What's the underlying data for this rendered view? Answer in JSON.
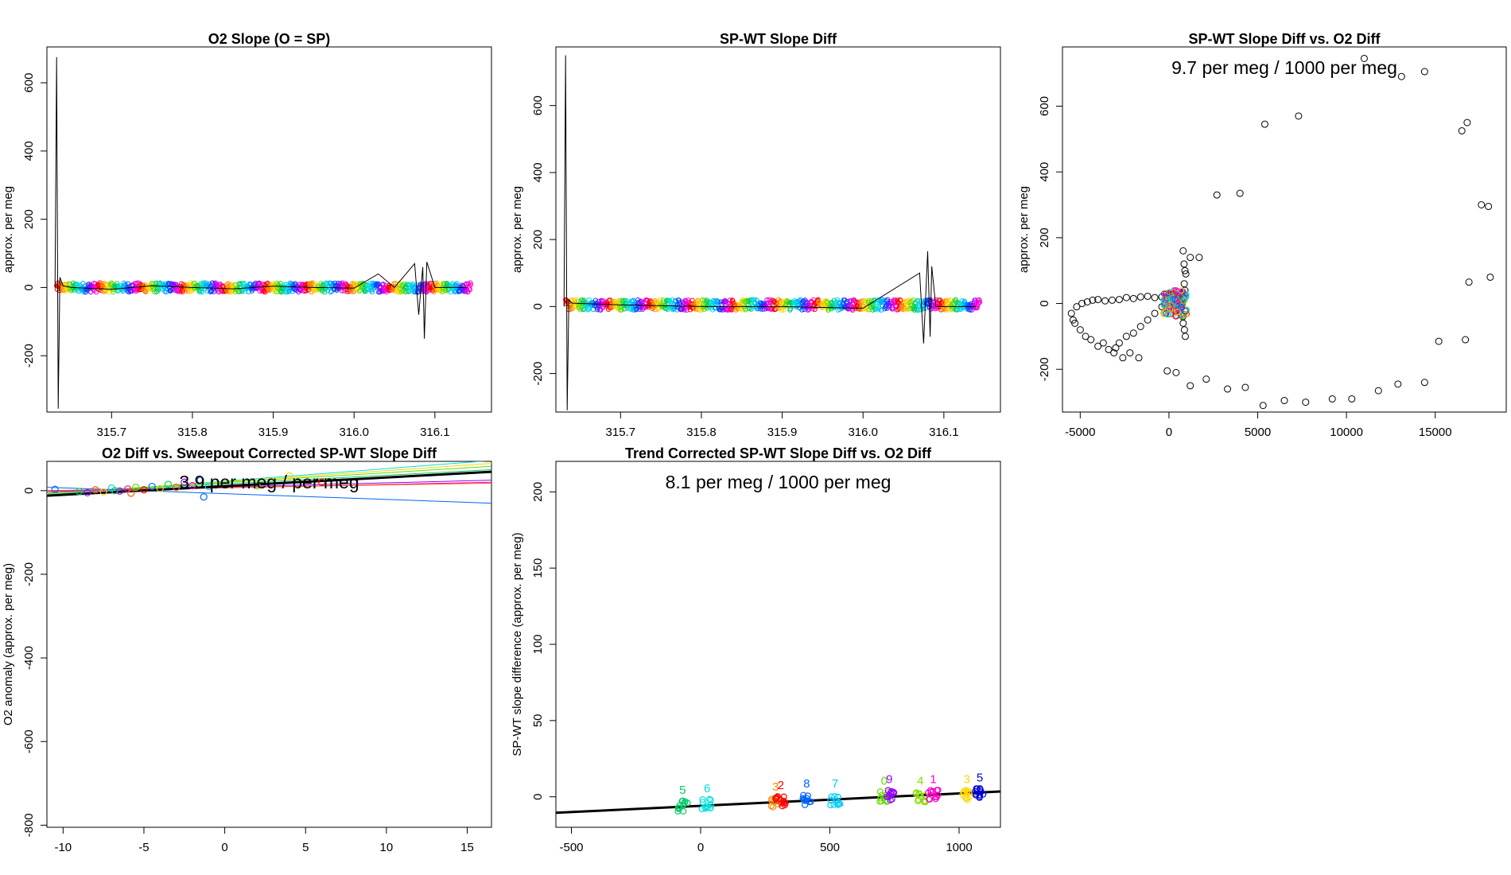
{
  "chart_data": [
    {
      "id": "p1",
      "type": "line",
      "title": "O2 Slope (O = SP)",
      "xlabel": "",
      "ylabel": "approx. per meg",
      "xlim": [
        315.62,
        316.17
      ],
      "ylim": [
        -365,
        705
      ],
      "xticks": [
        315.7,
        315.8,
        315.9,
        316.0,
        316.1
      ],
      "xtick_labels": [
        "315.7",
        "315.8",
        "315.9",
        "316.0",
        "316.1"
      ],
      "yticks": [
        -200,
        0,
        200,
        400,
        600
      ],
      "ytick_labels": [
        "-200",
        "0",
        "200",
        "400",
        "600"
      ],
      "series": [
        {
          "name": "trace",
          "color": "#000000",
          "x": [
            315.63,
            315.632,
            315.634,
            315.636,
            315.64,
            315.65,
            315.7,
            315.75,
            315.8,
            315.85,
            315.9,
            315.95,
            316.0,
            316.03,
            316.05,
            316.075,
            316.08,
            316.085,
            316.087,
            316.09,
            316.1,
            316.14
          ],
          "y": [
            0,
            675,
            -355,
            30,
            5,
            0,
            -5,
            5,
            0,
            -4,
            4,
            0,
            -2,
            40,
            0,
            70,
            -80,
            60,
            -150,
            75,
            0,
            0
          ]
        }
      ],
      "band": {
        "x_range": [
          315.632,
          316.145
        ],
        "y_center": 0,
        "spread": 14
      },
      "annotation": ""
    },
    {
      "id": "p2",
      "type": "line",
      "title": "SP-WT Slope Diff",
      "xlabel": "",
      "ylabel": "approx. per meg",
      "xlim": [
        315.62,
        316.17
      ],
      "ylim": [
        -315,
        775
      ],
      "xticks": [
        315.7,
        315.8,
        315.9,
        316.0,
        316.1
      ],
      "xtick_labels": [
        "315.7",
        "315.8",
        "315.9",
        "316.0",
        "316.1"
      ],
      "yticks": [
        -200,
        0,
        200,
        400,
        600
      ],
      "ytick_labels": [
        "-200",
        "0",
        "200",
        "400",
        "600"
      ],
      "series": [
        {
          "name": "trace",
          "color": "#000000",
          "x": [
            315.63,
            315.632,
            315.634,
            315.636,
            315.64,
            315.7,
            315.8,
            315.9,
            316.0,
            316.07,
            316.075,
            316.08,
            316.083,
            316.085,
            316.09,
            316.1,
            316.14
          ],
          "y": [
            0,
            750,
            -310,
            20,
            10,
            5,
            0,
            0,
            -5,
            100,
            -110,
            165,
            -90,
            120,
            0,
            0,
            0
          ]
        }
      ],
      "band": {
        "x_range": [
          315.632,
          316.145
        ],
        "y_center": 5,
        "spread": 16
      },
      "annotation": ""
    },
    {
      "id": "p3",
      "type": "scatter",
      "title": "SP-WT Slope Diff vs. O2 Diff",
      "xlabel": "",
      "ylabel": "approx. per meg",
      "xlim": [
        -6000,
        19000
      ],
      "ylim": [
        -330,
        780
      ],
      "xticks": [
        -5000,
        0,
        5000,
        10000,
        15000
      ],
      "xtick_labels": [
        "-5000",
        "0",
        "5000",
        "10000",
        "15000"
      ],
      "yticks": [
        -200,
        0,
        200,
        400,
        600
      ],
      "ytick_labels": [
        "-200",
        "0",
        "200",
        "400",
        "600"
      ],
      "points_x": [
        -5500,
        -5400,
        -5200,
        -4900,
        -4600,
        -4300,
        -4000,
        -3600,
        -3200,
        -2800,
        -2400,
        -2000,
        -1600,
        -1200,
        -800,
        -400,
        0,
        400,
        700,
        900,
        -5300,
        -5000,
        -4700,
        -4400,
        -4000,
        -3700,
        -3400,
        -3100,
        -2800,
        -2400,
        -2000,
        -1600,
        -1200,
        -800,
        -400,
        1200,
        1700,
        2700,
        4000,
        5400,
        7300,
        11000,
        13100,
        14400,
        16500,
        16800,
        17600,
        18000,
        18100,
        16900,
        16700,
        15200,
        14400,
        12900,
        11800,
        10300,
        9200,
        7700,
        6500,
        5300,
        4300,
        3300,
        2100,
        1200,
        400,
        -100,
        -1700,
        -2200,
        -2600,
        -3000,
        800,
        850,
        900,
        950,
        800,
        870,
        920,
        860,
        780
      ],
      "points_y": [
        -30,
        -50,
        -10,
        0,
        5,
        10,
        12,
        8,
        10,
        12,
        18,
        15,
        20,
        22,
        18,
        20,
        25,
        22,
        30,
        40,
        -60,
        -80,
        -100,
        -110,
        -130,
        -120,
        -140,
        -150,
        -120,
        -100,
        -90,
        -70,
        -50,
        -30,
        -10,
        140,
        140,
        330,
        335,
        545,
        570,
        745,
        690,
        705,
        525,
        550,
        300,
        295,
        80,
        65,
        -110,
        -115,
        -240,
        -245,
        -265,
        -290,
        -290,
        -300,
        -295,
        -310,
        -255,
        -260,
        -230,
        -250,
        -210,
        -205,
        -165,
        -150,
        -165,
        -135,
        160,
        120,
        100,
        90,
        -60,
        -80,
        -100,
        60,
        -40
      ],
      "annotation": "9.7 per meg / 1000 per meg",
      "cluster": {
        "x_range": [
          -300,
          1000
        ],
        "y_range": [
          -40,
          40
        ]
      }
    },
    {
      "id": "p4",
      "type": "scatter",
      "title": "O2 Diff vs. Sweepout Corrected SP-WT Slope Diff",
      "xlabel": "",
      "ylabel": "O2 anomaly (approx. per meg)",
      "xlim": [
        -11,
        16.5
      ],
      "ylim": [
        -805,
        70
      ],
      "xticks": [
        -10,
        -5,
        0,
        5,
        10,
        15
      ],
      "xtick_labels": [
        "-10",
        "-5",
        "0",
        "5",
        "10",
        "15"
      ],
      "yticks": [
        -800,
        -600,
        -400,
        -200,
        0
      ],
      "ytick_labels": [
        "-800",
        "-600",
        "-400",
        "-200",
        "0"
      ],
      "fit_lines": [
        {
          "color": "#00e0e0",
          "x": [
            -11,
            16.5
          ],
          "y": [
            -10,
            72
          ]
        },
        {
          "color": "#ffd700",
          "x": [
            -11,
            16.5
          ],
          "y": [
            -8,
            65
          ]
        },
        {
          "color": "#66dd00",
          "x": [
            -11,
            16.5
          ],
          "y": [
            -6,
            58
          ]
        },
        {
          "color": "#00cc66",
          "x": [
            -11,
            16.5
          ],
          "y": [
            -6,
            50
          ]
        },
        {
          "color": "#9900ff",
          "x": [
            -11,
            16.5
          ],
          "y": [
            -2,
            25
          ]
        },
        {
          "color": "#ff00cc",
          "x": [
            -11,
            16.5
          ],
          "y": [
            -2,
            20
          ]
        },
        {
          "color": "#ff5500",
          "x": [
            -11,
            16.5
          ],
          "y": [
            0,
            18
          ]
        },
        {
          "color": "#0066ff",
          "x": [
            -11,
            16.5
          ],
          "y": [
            8,
            -30
          ]
        },
        {
          "color": "#000000",
          "x": [
            -11,
            16.5
          ],
          "y": [
            -12,
            45
          ],
          "width": 3
        }
      ],
      "points": [
        {
          "x": -10.5,
          "y": 3,
          "color": "#0066ff"
        },
        {
          "x": -9.0,
          "y": -2,
          "color": "#00cc66"
        },
        {
          "x": -8.0,
          "y": 2,
          "color": "#ff5500"
        },
        {
          "x": -7.5,
          "y": -3,
          "color": "#ffd700"
        },
        {
          "x": -7.0,
          "y": 6,
          "color": "#00e0e0"
        },
        {
          "x": -6.5,
          "y": -1,
          "color": "#9900ff"
        },
        {
          "x": -6.0,
          "y": 4,
          "color": "#ff00cc"
        },
        {
          "x": -5.5,
          "y": 8,
          "color": "#66dd00"
        },
        {
          "x": -5.0,
          "y": 2,
          "color": "#ff0000"
        },
        {
          "x": -4.5,
          "y": 10,
          "color": "#0066ff"
        },
        {
          "x": -4.0,
          "y": 5,
          "color": "#ffd700"
        },
        {
          "x": -3.5,
          "y": 15,
          "color": "#00cc66"
        },
        {
          "x": -3.0,
          "y": 8,
          "color": "#ff5500"
        },
        {
          "x": -2.5,
          "y": 20,
          "color": "#9900ff"
        },
        {
          "x": -2.0,
          "y": 12,
          "color": "#ff00cc"
        },
        {
          "x": -1.5,
          "y": 25,
          "color": "#0066ff"
        },
        {
          "x": -1.3,
          "y": -15,
          "color": "#0066ff"
        },
        {
          "x": -1.0,
          "y": 10,
          "color": "#00e0e0"
        },
        {
          "x": 2.0,
          "y": 12,
          "color": "#66dd00"
        },
        {
          "x": 4.0,
          "y": 35,
          "color": "#ffd700"
        },
        {
          "x": 6.0,
          "y": 20,
          "color": "#ff0000"
        },
        {
          "x": -8.5,
          "y": -5,
          "color": "#9900ff"
        },
        {
          "x": -6.8,
          "y": 0,
          "color": "#00cc66"
        },
        {
          "x": -5.8,
          "y": -6,
          "color": "#ff5500"
        }
      ],
      "annotation": "3.9 per meg / per meg"
    },
    {
      "id": "p5",
      "type": "scatter",
      "title": "Trend Corrected SP-WT Slope Diff vs. O2 Diff",
      "xlabel": "",
      "ylabel": "SP-WT slope difference (approx. per meg)",
      "xlim": [
        -560,
        1160
      ],
      "ylim": [
        -20,
        220
      ],
      "xticks": [
        -500,
        0,
        500,
        1000
      ],
      "xtick_labels": [
        "-500",
        "0",
        "500",
        "1000"
      ],
      "yticks": [
        0,
        50,
        100,
        150,
        200
      ],
      "ytick_labels": [
        "0",
        "50",
        "100",
        "150",
        "200"
      ],
      "fit_lines": [
        {
          "color": "#000000",
          "x": [
            -560,
            1160
          ],
          "y": [
            -10.5,
            3.5
          ],
          "width": 3
        }
      ],
      "clusters": [
        {
          "x": -70,
          "y": -6,
          "color": "#00cc66",
          "label": "5"
        },
        {
          "x": 25,
          "y": -5,
          "color": "#00e0e0",
          "label": "6"
        },
        {
          "x": 290,
          "y": -4,
          "color": "#ff8800",
          "label": "3"
        },
        {
          "x": 310,
          "y": -3,
          "color": "#ff0000",
          "label": "2"
        },
        {
          "x": 410,
          "y": -2,
          "color": "#0066ff",
          "label": "8"
        },
        {
          "x": 520,
          "y": -2,
          "color": "#00ccff",
          "label": "7"
        },
        {
          "x": 710,
          "y": 0,
          "color": "#66dd00",
          "label": "0"
        },
        {
          "x": 730,
          "y": 1,
          "color": "#9900ff",
          "label": "9"
        },
        {
          "x": 850,
          "y": 0,
          "color": "#88dd00",
          "label": "4"
        },
        {
          "x": 900,
          "y": 1,
          "color": "#ff00cc",
          "label": "1"
        },
        {
          "x": 1030,
          "y": 1,
          "color": "#ffd700",
          "label": "3"
        },
        {
          "x": 1080,
          "y": 2,
          "color": "#0000dd",
          "label": "5"
        }
      ],
      "annotation": "8.1 per meg / 1000 per meg"
    }
  ]
}
